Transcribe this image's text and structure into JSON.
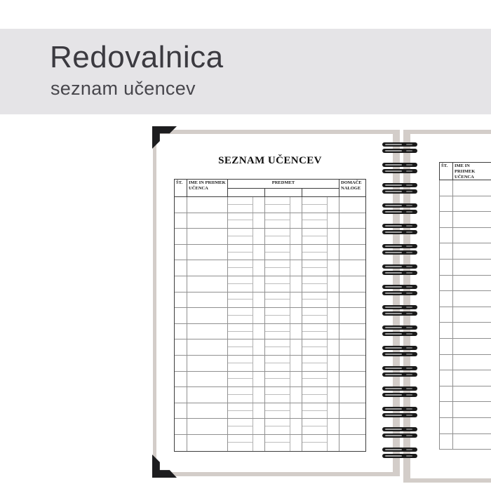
{
  "banner": {
    "title": "Redovalnica",
    "subtitle": "seznam učencev",
    "background_color": "#e5e4e7",
    "title_color": "#3b3a40"
  },
  "left_page": {
    "title": "SEZNAM UČENCEV",
    "columns": {
      "st": "ŠT.",
      "ime_line1": "IME IN PRIIMEK",
      "ime_line2": "UČENCA",
      "predmet": "PREDMET",
      "domace_line1": "DOMAČE",
      "domace_line2": "NALOGE"
    },
    "predmet_subcolumns": 3,
    "body_rows": 16
  },
  "right_page": {
    "columns": {
      "st": "ŠT.",
      "ime_line1": "IME IN PRIIMEK",
      "ime_line2": "UČENCA"
    },
    "body_rows": 17
  },
  "spiral": {
    "coils": 16,
    "color": "#1b1b1b"
  },
  "colors": {
    "page_border": "#d3cdc9",
    "grid_dark": "#3d3d3d",
    "grid_main": "#909090",
    "grid_light": "#bdbdbd",
    "corner_mark": "#1d1d1f"
  }
}
